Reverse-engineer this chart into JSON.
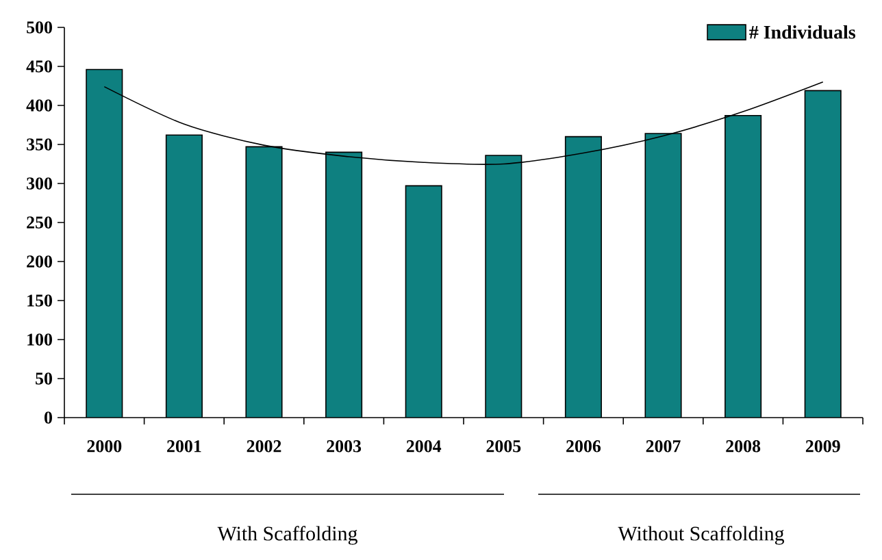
{
  "chart_data": {
    "type": "bar",
    "categories": [
      "2000",
      "2001",
      "2002",
      "2003",
      "2004",
      "2005",
      "2006",
      "2007",
      "2008",
      "2009"
    ],
    "series": [
      {
        "name": "# Individuals",
        "color": "#0e8080",
        "values": [
          446,
          362,
          347,
          340,
          297,
          336,
          360,
          364,
          387,
          419
        ]
      },
      {
        "type": "line",
        "color": "#000000",
        "values": [
          424,
          376,
          349,
          335,
          327,
          325,
          339,
          361,
          392,
          430
        ]
      }
    ],
    "ylim": [
      0,
      500
    ],
    "yticks": [
      0,
      50,
      100,
      150,
      200,
      250,
      300,
      350,
      400,
      450,
      500
    ],
    "legend": "top right",
    "marker": "none",
    "line_style": "solid",
    "annotations": [
      "With Scaffolding",
      "Without Scaffolding"
    ]
  }
}
